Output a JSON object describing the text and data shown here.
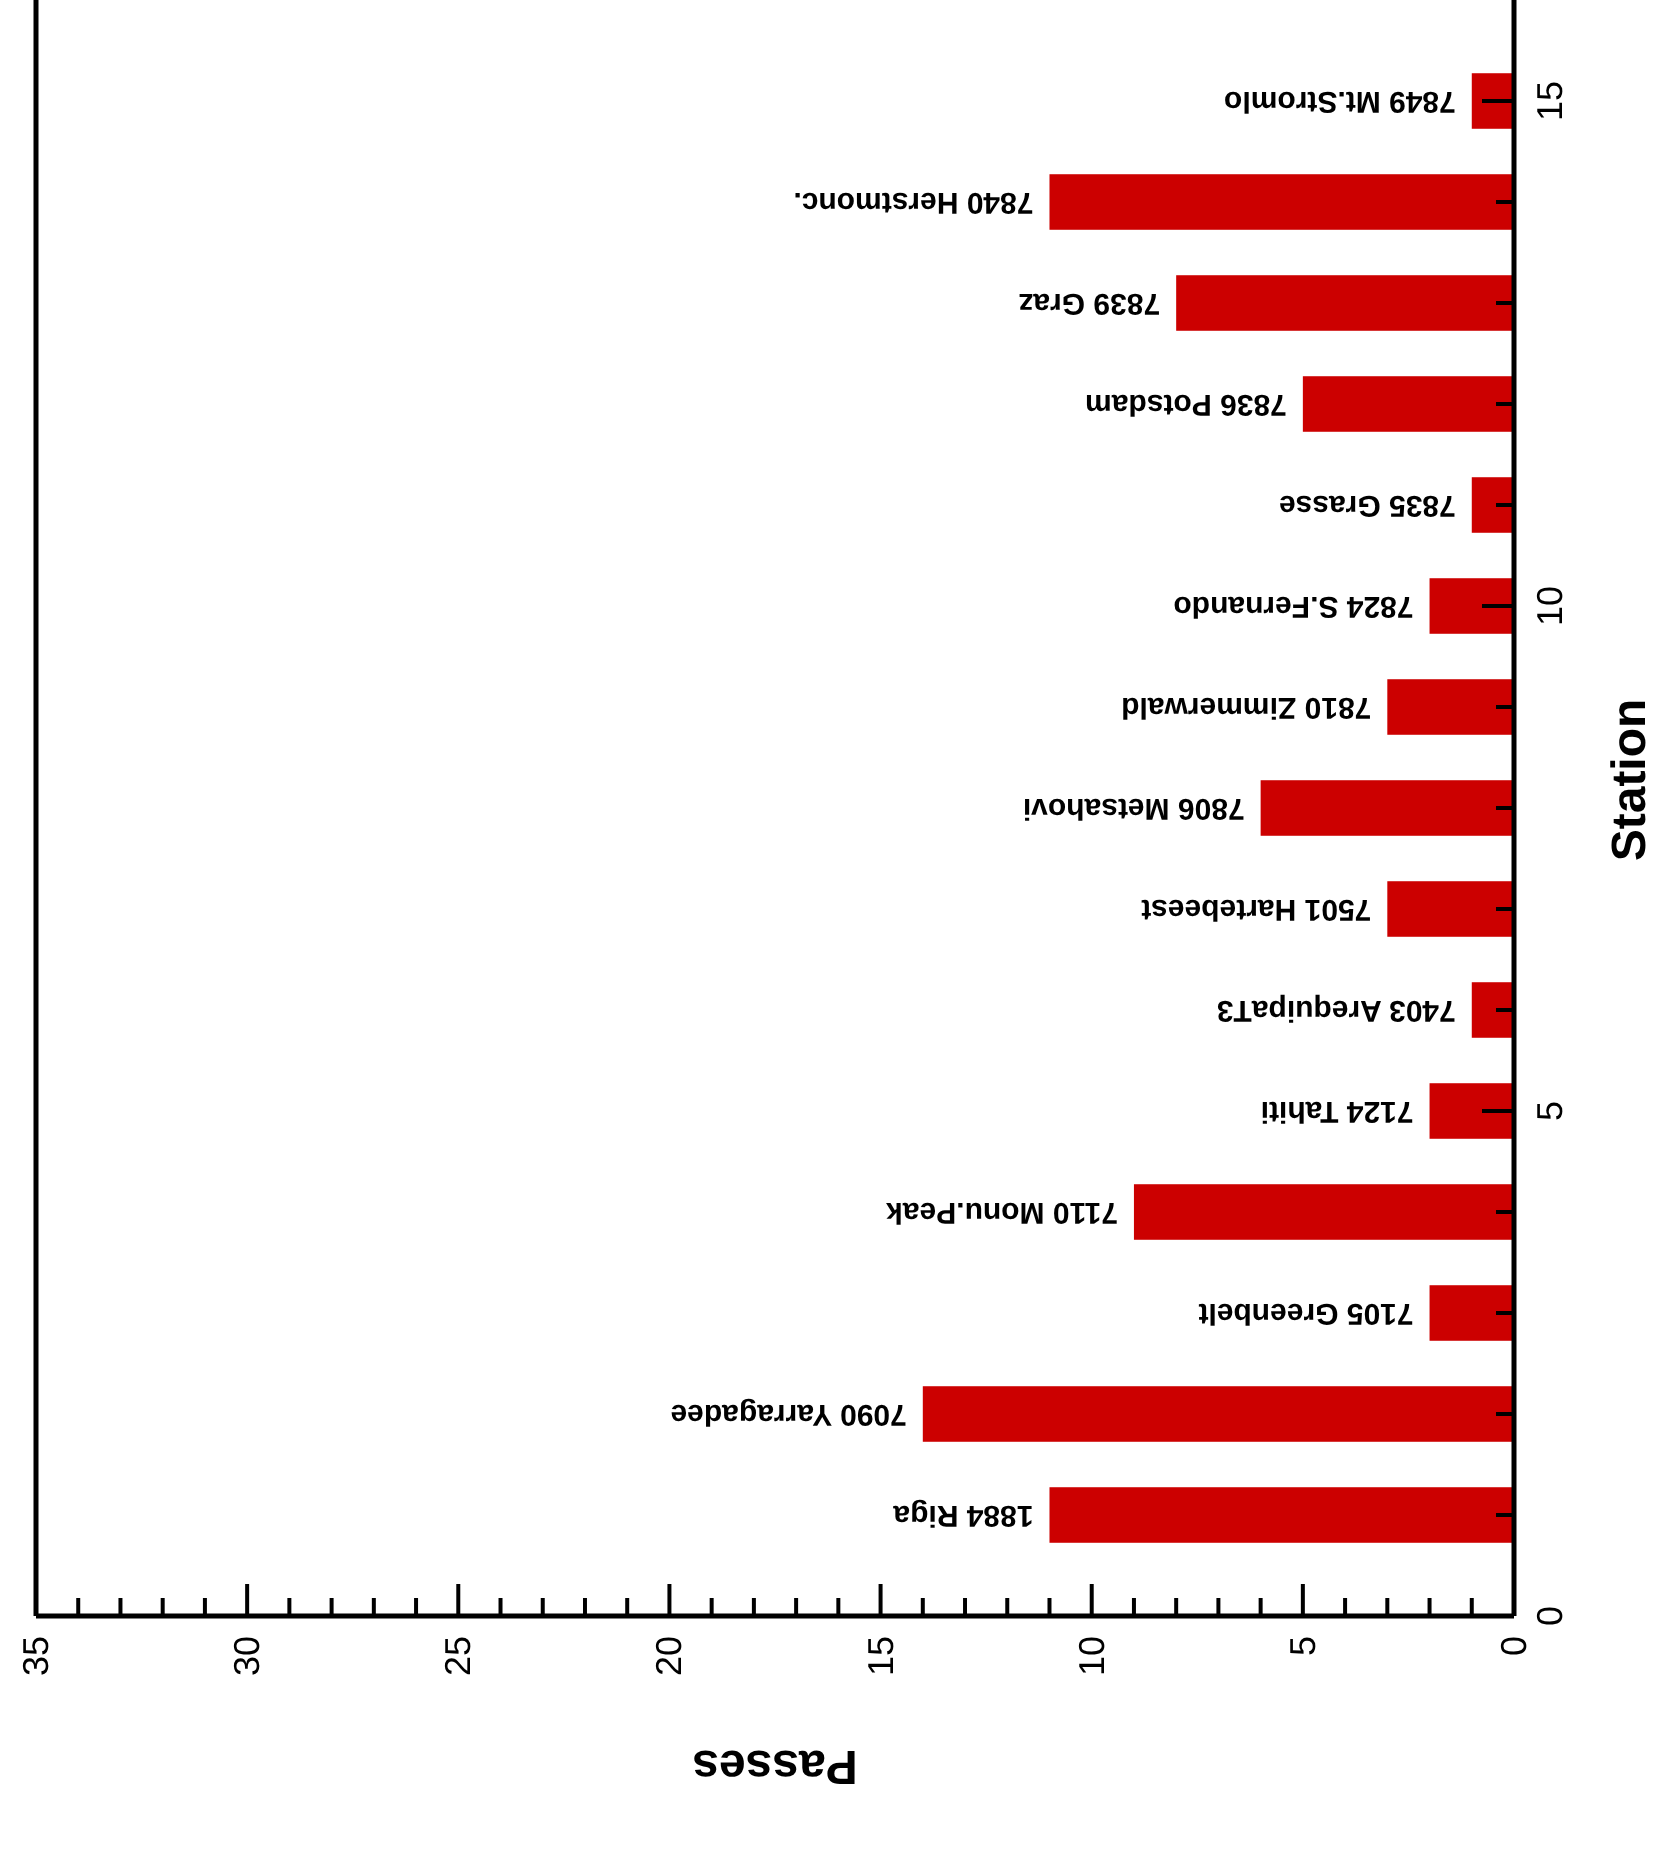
{
  "chart_data": {
    "type": "bar",
    "orientation": "horizontal",
    "xlabel": "Passes",
    "ylabel": "Station",
    "x": [
      1,
      2,
      3,
      4,
      5,
      6,
      7,
      8,
      9,
      10,
      11,
      12,
      13,
      14,
      15
    ],
    "series": [
      {
        "color": "#cc0000",
        "values": [
          11,
          14,
          2,
          9,
          2,
          1,
          3,
          6,
          3,
          2,
          1,
          5,
          8,
          11,
          1
        ]
      }
    ],
    "xlim": [
      35,
      0
    ],
    "xticks": [
      0,
      {
        "value": 1,
        "label": null
      },
      {
        "value": 2,
        "label": null
      },
      {
        "value": 3,
        "label": null
      },
      {
        "value": 4,
        "label": null
      },
      5,
      {
        "value": 6,
        "label": null
      },
      {
        "value": 7,
        "label": null
      },
      {
        "value": 8,
        "label": null
      },
      {
        "value": 9,
        "label": null
      },
      10,
      {
        "value": 11,
        "label": null
      },
      {
        "value": 12,
        "label": null
      },
      {
        "value": 13,
        "label": null
      },
      {
        "value": 14,
        "label": null
      },
      15,
      {
        "value": 16,
        "label": null
      },
      {
        "value": 17,
        "label": null
      },
      {
        "value": 18,
        "label": null
      },
      {
        "value": 19,
        "label": null
      },
      20,
      {
        "value": 21,
        "label": null
      },
      {
        "value": 22,
        "label": null
      },
      {
        "value": 23,
        "label": null
      },
      {
        "value": 24,
        "label": null
      },
      25,
      {
        "value": 26,
        "label": null
      },
      {
        "value": 27,
        "label": null
      },
      {
        "value": 28,
        "label": null
      },
      {
        "value": 29,
        "label": null
      },
      30,
      {
        "value": 31,
        "label": null
      },
      {
        "value": 32,
        "label": null
      },
      {
        "value": 33,
        "label": null
      },
      {
        "value": 34,
        "label": null
      },
      35
    ],
    "ylim": [
      0,
      16
    ],
    "yticks": [
      0,
      {
        "value": 1,
        "label": null
      },
      {
        "value": 2,
        "label": null
      },
      {
        "value": 3,
        "label": null
      },
      {
        "value": 4,
        "label": null
      },
      5,
      {
        "value": 6,
        "label": null
      },
      {
        "value": 7,
        "label": null
      },
      {
        "value": 8,
        "label": null
      },
      {
        "value": 9,
        "label": null
      },
      10,
      {
        "value": 11,
        "label": null
      },
      {
        "value": 12,
        "label": null
      },
      {
        "value": 13,
        "label": null
      },
      {
        "value": 14,
        "label": null
      },
      15
    ],
    "annotations": [
      {
        "text": "1884 Riga",
        "x": 11,
        "y": 1
      },
      {
        "text": "7090 Yarragadee",
        "x": 14,
        "y": 2
      },
      {
        "text": "7105 Greenbelt",
        "x": 2,
        "y": 3
      },
      {
        "text": "7110 Monu.Peak",
        "x": 9,
        "y": 4
      },
      {
        "text": "7124 Tahiti",
        "x": 2,
        "y": 5
      },
      {
        "text": "7403 ArequipaT3",
        "x": 1,
        "y": 6
      },
      {
        "text": "7501 Hartebeest",
        "x": 3,
        "y": 7
      },
      {
        "text": "7806 Metsahovi",
        "x": 6,
        "y": 8
      },
      {
        "text": "7810 Zimmerwald",
        "x": 3,
        "y": 9
      },
      {
        "text": "7824 S.Fernando",
        "x": 2,
        "y": 10
      },
      {
        "text": "7835 Grasse",
        "x": 1,
        "y": 11
      },
      {
        "text": "7836 Potsdam",
        "x": 5,
        "y": 12
      },
      {
        "text": "7839 Graz",
        "x": 8,
        "y": 13
      },
      {
        "text": "7840 Herstmonc.",
        "x": 11,
        "y": 14
      },
      {
        "text": "7849 Mt.Stromlo",
        "x": 1,
        "y": 15
      }
    ]
  }
}
